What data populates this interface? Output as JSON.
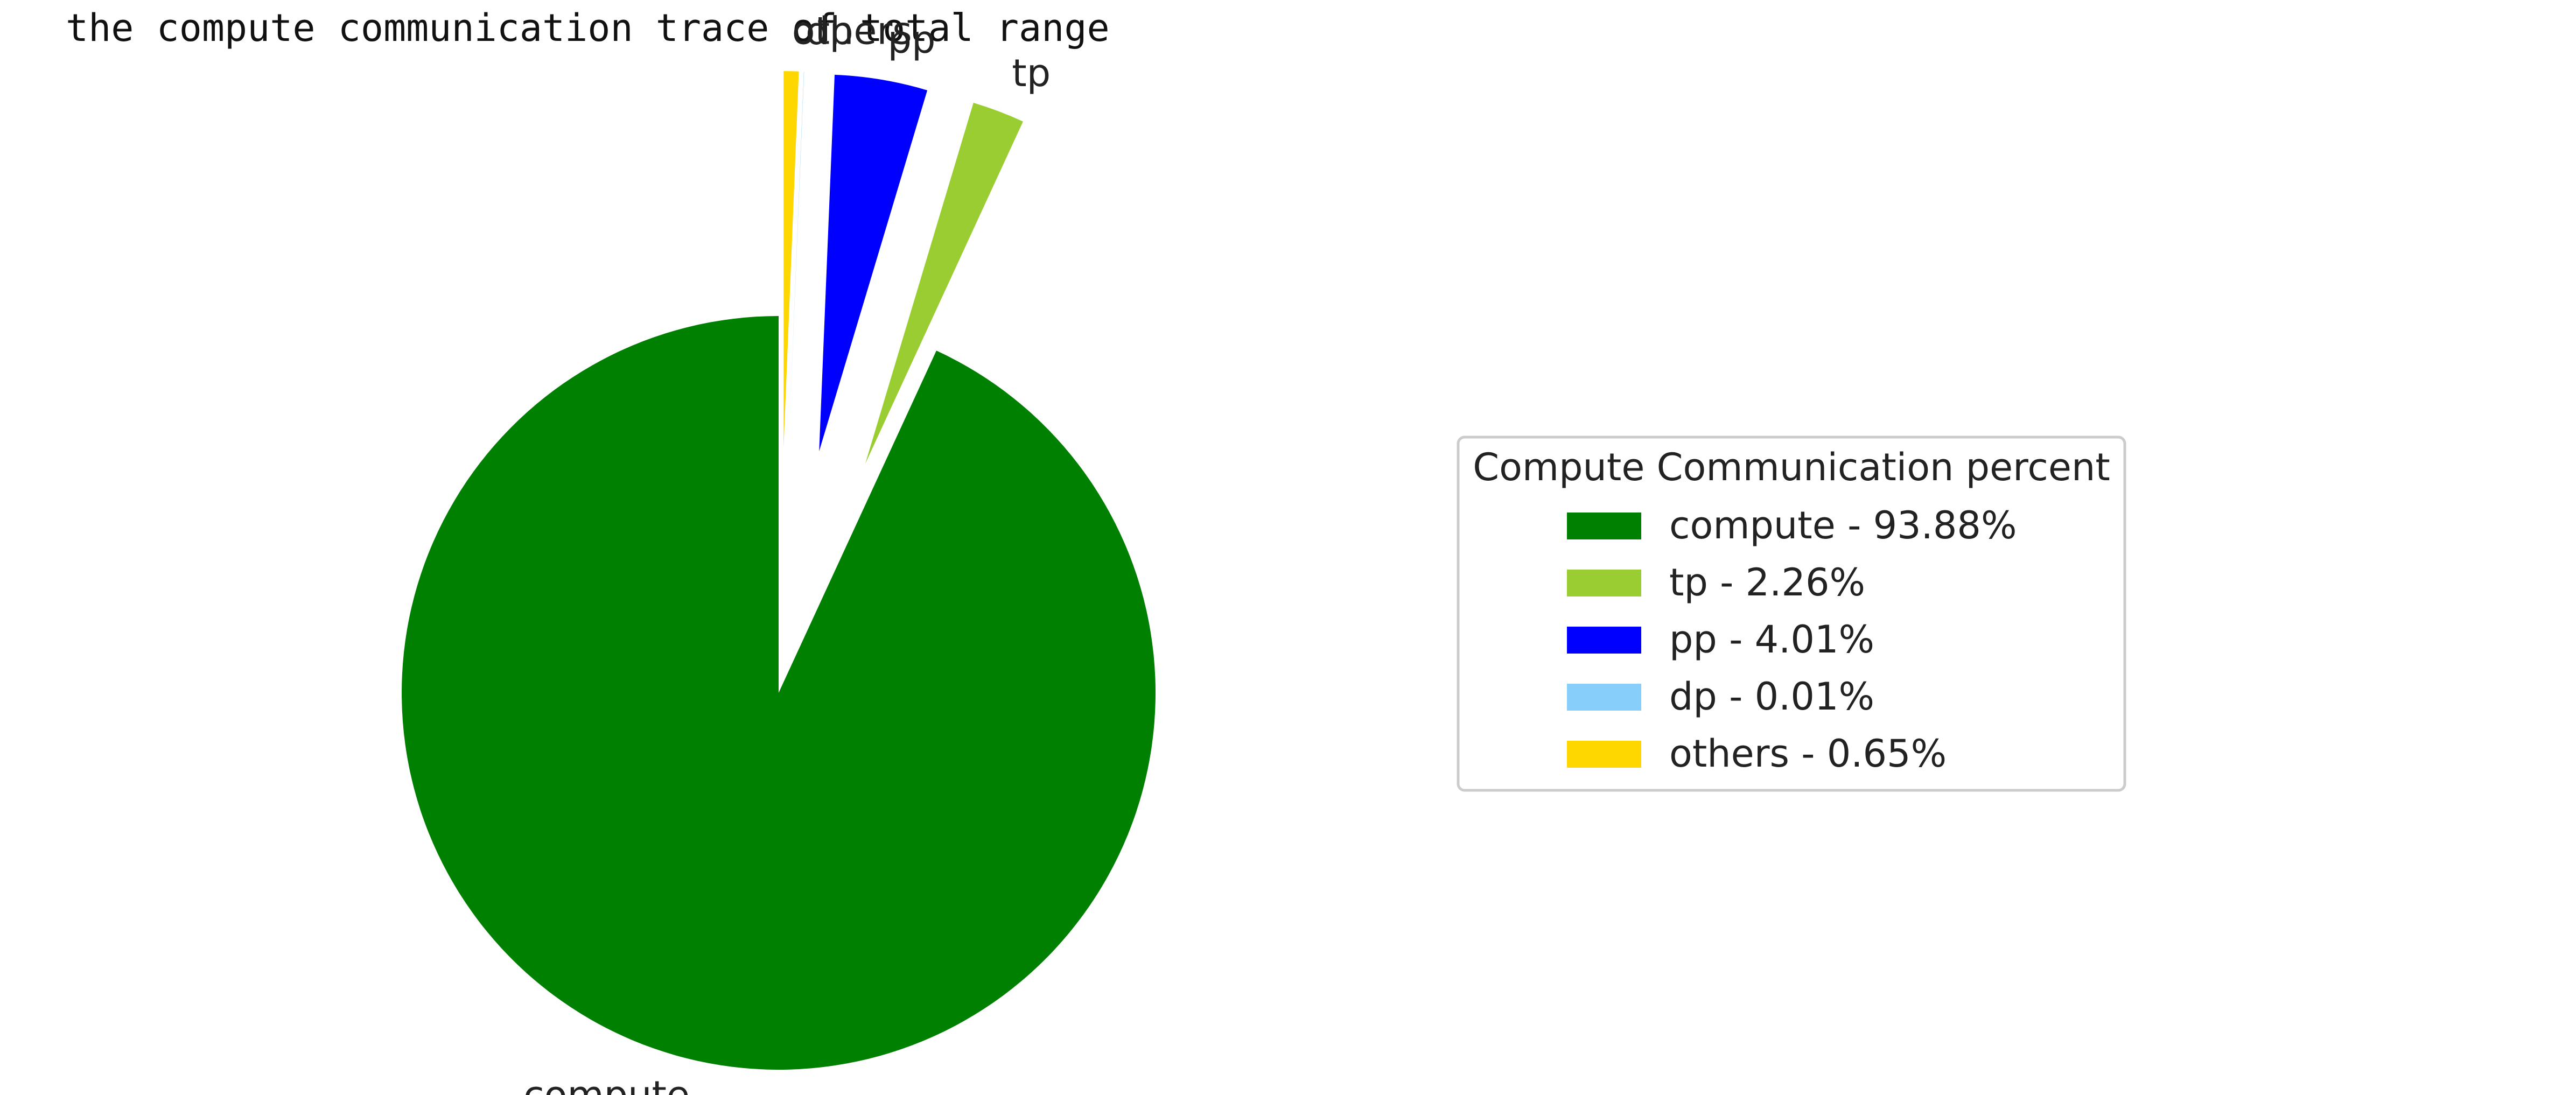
{
  "page": {
    "title": "the compute communication trace of total range"
  },
  "chart_data": {
    "type": "pie",
    "title": "the compute communication trace of total range",
    "start_angle": 90,
    "direction": "counterclockwise",
    "exploded": [
      "tp",
      "pp",
      "dp",
      "others"
    ],
    "slices": [
      {
        "label": "compute",
        "value": 93.88,
        "color": "#008000",
        "legend": "compute - 93.88%"
      },
      {
        "label": "tp",
        "value": 2.26,
        "color": "#9acd32",
        "legend": "tp - 2.26%"
      },
      {
        "label": "pp",
        "value": 4.01,
        "color": "#0000ff",
        "legend": "pp - 4.01%"
      },
      {
        "label": "dp",
        "value": 0.01,
        "color": "#87cefa",
        "legend": "dp - 0.01%"
      },
      {
        "label": "others",
        "value": 0.65,
        "color": "#ffd700",
        "legend": "others - 0.65%"
      }
    ],
    "legend": {
      "title": "Compute Communication percent",
      "placement": "right"
    }
  }
}
